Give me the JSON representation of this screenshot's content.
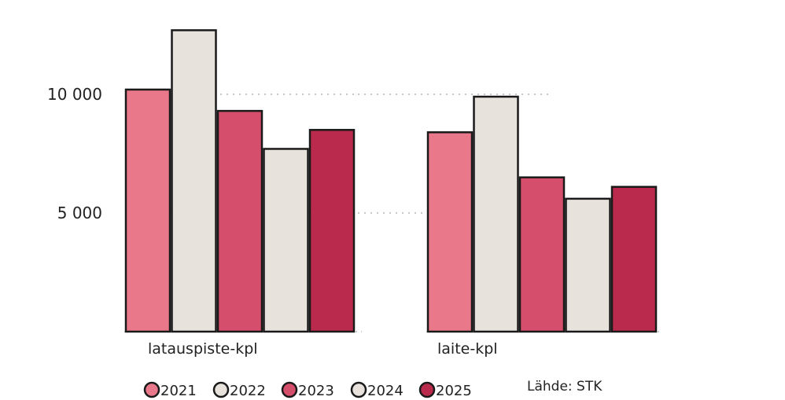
{
  "chart_data": {
    "type": "bar",
    "categories": [
      "latauspiste-kpl",
      "laite-kpl"
    ],
    "series": [
      {
        "name": "2021",
        "values": [
          10200,
          8400
        ],
        "color": "#e8788a"
      },
      {
        "name": "2022",
        "values": [
          12700,
          9900
        ],
        "color": "#e8e2dc"
      },
      {
        "name": "2023",
        "values": [
          9300,
          6500
        ],
        "color": "#d54f6c"
      },
      {
        "name": "2024",
        "values": [
          7700,
          5600
        ],
        "color": "#e8e2dc"
      },
      {
        "name": "2025",
        "values": [
          8500,
          6100
        ],
        "color": "#b92a4c"
      }
    ],
    "yticks": [
      {
        "value": 5000,
        "label": "5 000"
      },
      {
        "value": 10000,
        "label": "10 000"
      }
    ],
    "ylim": [
      0,
      13000
    ],
    "grid": "horizontal dotted",
    "legend_placement": "bottom",
    "source": "Lähde: STK"
  }
}
